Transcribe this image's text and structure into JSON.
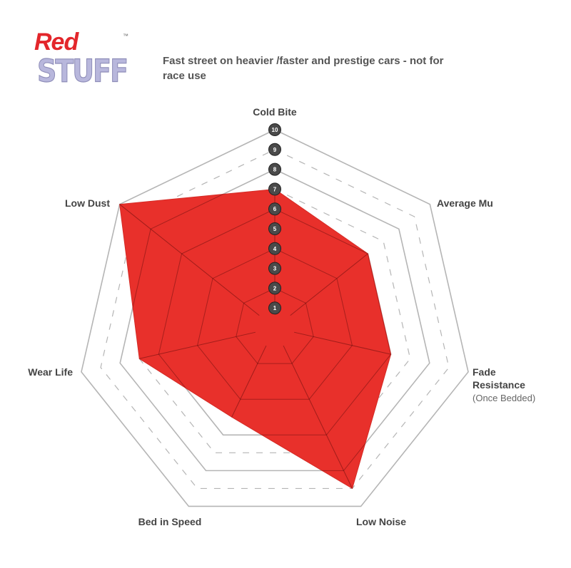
{
  "logo": {
    "line1": "Red",
    "line2": "STUFF",
    "tm": "™"
  },
  "subtitle": "Fast street on heavier /faster and prestige cars - not for race use",
  "chart_data": {
    "type": "radar",
    "title": "",
    "axes": [
      "Cold Bite",
      "Average Mu",
      "Fade Resistance",
      "Low Noise",
      "Bed in Speed",
      "Wear Life",
      "Low Dust"
    ],
    "axis_note": {
      "Fade Resistance": "(Once Bedded)"
    },
    "scale_labels": [
      "1",
      "2",
      "3",
      "4",
      "5",
      "6",
      "7",
      "8",
      "9",
      "10"
    ],
    "range": [
      0,
      10
    ],
    "values": [
      7,
      6,
      6,
      9,
      5,
      7,
      10
    ],
    "fill_color": "#e8302b",
    "grid": true
  }
}
